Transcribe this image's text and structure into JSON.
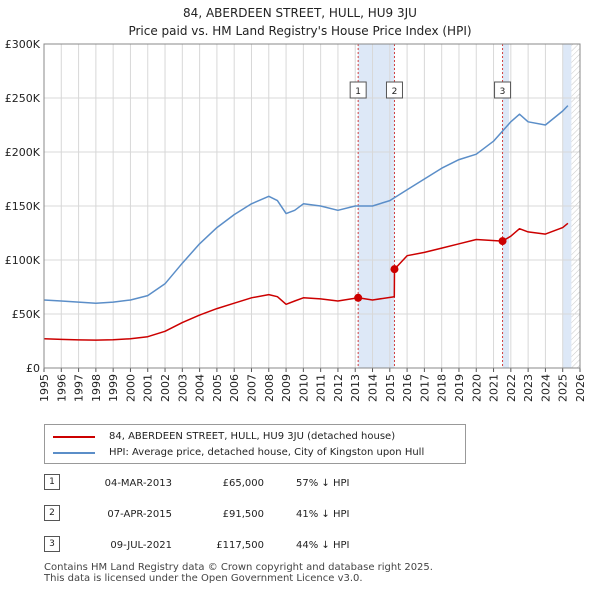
{
  "header": {
    "title_line1": "84, ABERDEEN STREET, HULL, HU9 3JU",
    "title_line2": "Price paid vs. HM Land Registry's House Price Index (HPI)"
  },
  "legend": {
    "property_label": "84, ABERDEEN STREET, HULL, HU9 3JU (detached house)",
    "hpi_label": "HPI: Average price, detached house, City of Kingston upon Hull"
  },
  "transactions": [
    {
      "num": "1",
      "date": "04-MAR-2013",
      "price": "£65,000",
      "hpi_diff": "57% ↓ HPI"
    },
    {
      "num": "2",
      "date": "07-APR-2015",
      "price": "£91,500",
      "hpi_diff": "41% ↓ HPI"
    },
    {
      "num": "3",
      "date": "09-JUL-2021",
      "price": "£117,500",
      "hpi_diff": "44% ↓ HPI"
    }
  ],
  "footer": {
    "line1": "Contains HM Land Registry data © Crown copyright and database right 2025.",
    "line2": "This data is licensed under the Open Government Licence v3.0."
  },
  "colors": {
    "property": "#cc0000",
    "hpi": "#5b8ec8",
    "marker_line": "#d04040",
    "shade": "#dde8f7",
    "grid": "#d8d8d8"
  },
  "chart_data": {
    "type": "line",
    "title": "84, ABERDEEN STREET, HULL, HU9 3JU",
    "subtitle": "Price paid vs. HM Land Registry's House Price Index (HPI)",
    "xlabel": "",
    "ylabel": "",
    "xlim": [
      1995,
      2026
    ],
    "ylim": [
      0,
      300000
    ],
    "x_ticks": [
      "1995",
      "1996",
      "1997",
      "1998",
      "1999",
      "2000",
      "2001",
      "2002",
      "2003",
      "2004",
      "2005",
      "2006",
      "2007",
      "2008",
      "2009",
      "2010",
      "2011",
      "2012",
      "2013",
      "2014",
      "2015",
      "2016",
      "2017",
      "2018",
      "2019",
      "2020",
      "2021",
      "2022",
      "2023",
      "2024",
      "2025",
      "2026"
    ],
    "y_ticks": [
      {
        "value": 0,
        "label": "£0"
      },
      {
        "value": 50000,
        "label": "£50K"
      },
      {
        "value": 100000,
        "label": "£100K"
      },
      {
        "value": 150000,
        "label": "£150K"
      },
      {
        "value": 200000,
        "label": "£200K"
      },
      {
        "value": 250000,
        "label": "£250K"
      },
      {
        "value": 300000,
        "label": "£300K"
      }
    ],
    "grid": true,
    "legend_position": "below",
    "series": [
      {
        "name": "HPI: Average price, detached house, City of Kingston upon Hull",
        "x": [
          1995,
          1996,
          1997,
          1998,
          1999,
          2000,
          2001,
          2002,
          2003,
          2004,
          2005,
          2006,
          2007,
          2008,
          2008.5,
          2009,
          2009.5,
          2010,
          2011,
          2012,
          2013,
          2014,
          2015,
          2016,
          2017,
          2018,
          2019,
          2020,
          2021,
          2022,
          2022.5,
          2023,
          2024,
          2025,
          2025.3
        ],
        "values": [
          63000,
          62000,
          61000,
          60000,
          61000,
          63000,
          67000,
          78000,
          97000,
          115000,
          130000,
          142000,
          152000,
          159000,
          155000,
          143000,
          146000,
          152000,
          150000,
          146000,
          150000,
          150000,
          155000,
          165000,
          175000,
          185000,
          193000,
          198000,
          210000,
          228000,
          235000,
          228000,
          225000,
          238000,
          243000
        ]
      },
      {
        "name": "84, ABERDEEN STREET, HULL, HU9 3JU (detached house)",
        "x": [
          1995,
          1996,
          1997,
          1998,
          1999,
          2000,
          2001,
          2002,
          2003,
          2004,
          2005,
          2006,
          2007,
          2008,
          2008.5,
          2009,
          2009.5,
          2010,
          2011,
          2012,
          2013.17,
          2014,
          2015.26,
          2015.27,
          2016,
          2017,
          2018,
          2019,
          2020,
          2021.52,
          2022,
          2022.5,
          2023,
          2024,
          2025,
          2025.3
        ],
        "values": [
          27000,
          26500,
          26000,
          25800,
          26200,
          27000,
          29000,
          34000,
          42000,
          49000,
          55000,
          60000,
          65000,
          68000,
          66000,
          59000,
          62000,
          65000,
          64000,
          62000,
          65000,
          63000,
          66000,
          91500,
          104000,
          107000,
          111000,
          115000,
          119000,
          117500,
          122000,
          129000,
          126000,
          124000,
          130000,
          134000
        ]
      }
    ],
    "markers": [
      {
        "label": "1",
        "x": 2013.17,
        "value": 65000
      },
      {
        "label": "2",
        "x": 2015.27,
        "value": 91500
      },
      {
        "label": "3",
        "x": 2021.52,
        "value": 117500
      }
    ],
    "shaded_ranges": [
      [
        2013.17,
        2015.27
      ],
      [
        2021.52,
        2021.9
      ],
      [
        2025.0,
        2025.5
      ]
    ]
  }
}
